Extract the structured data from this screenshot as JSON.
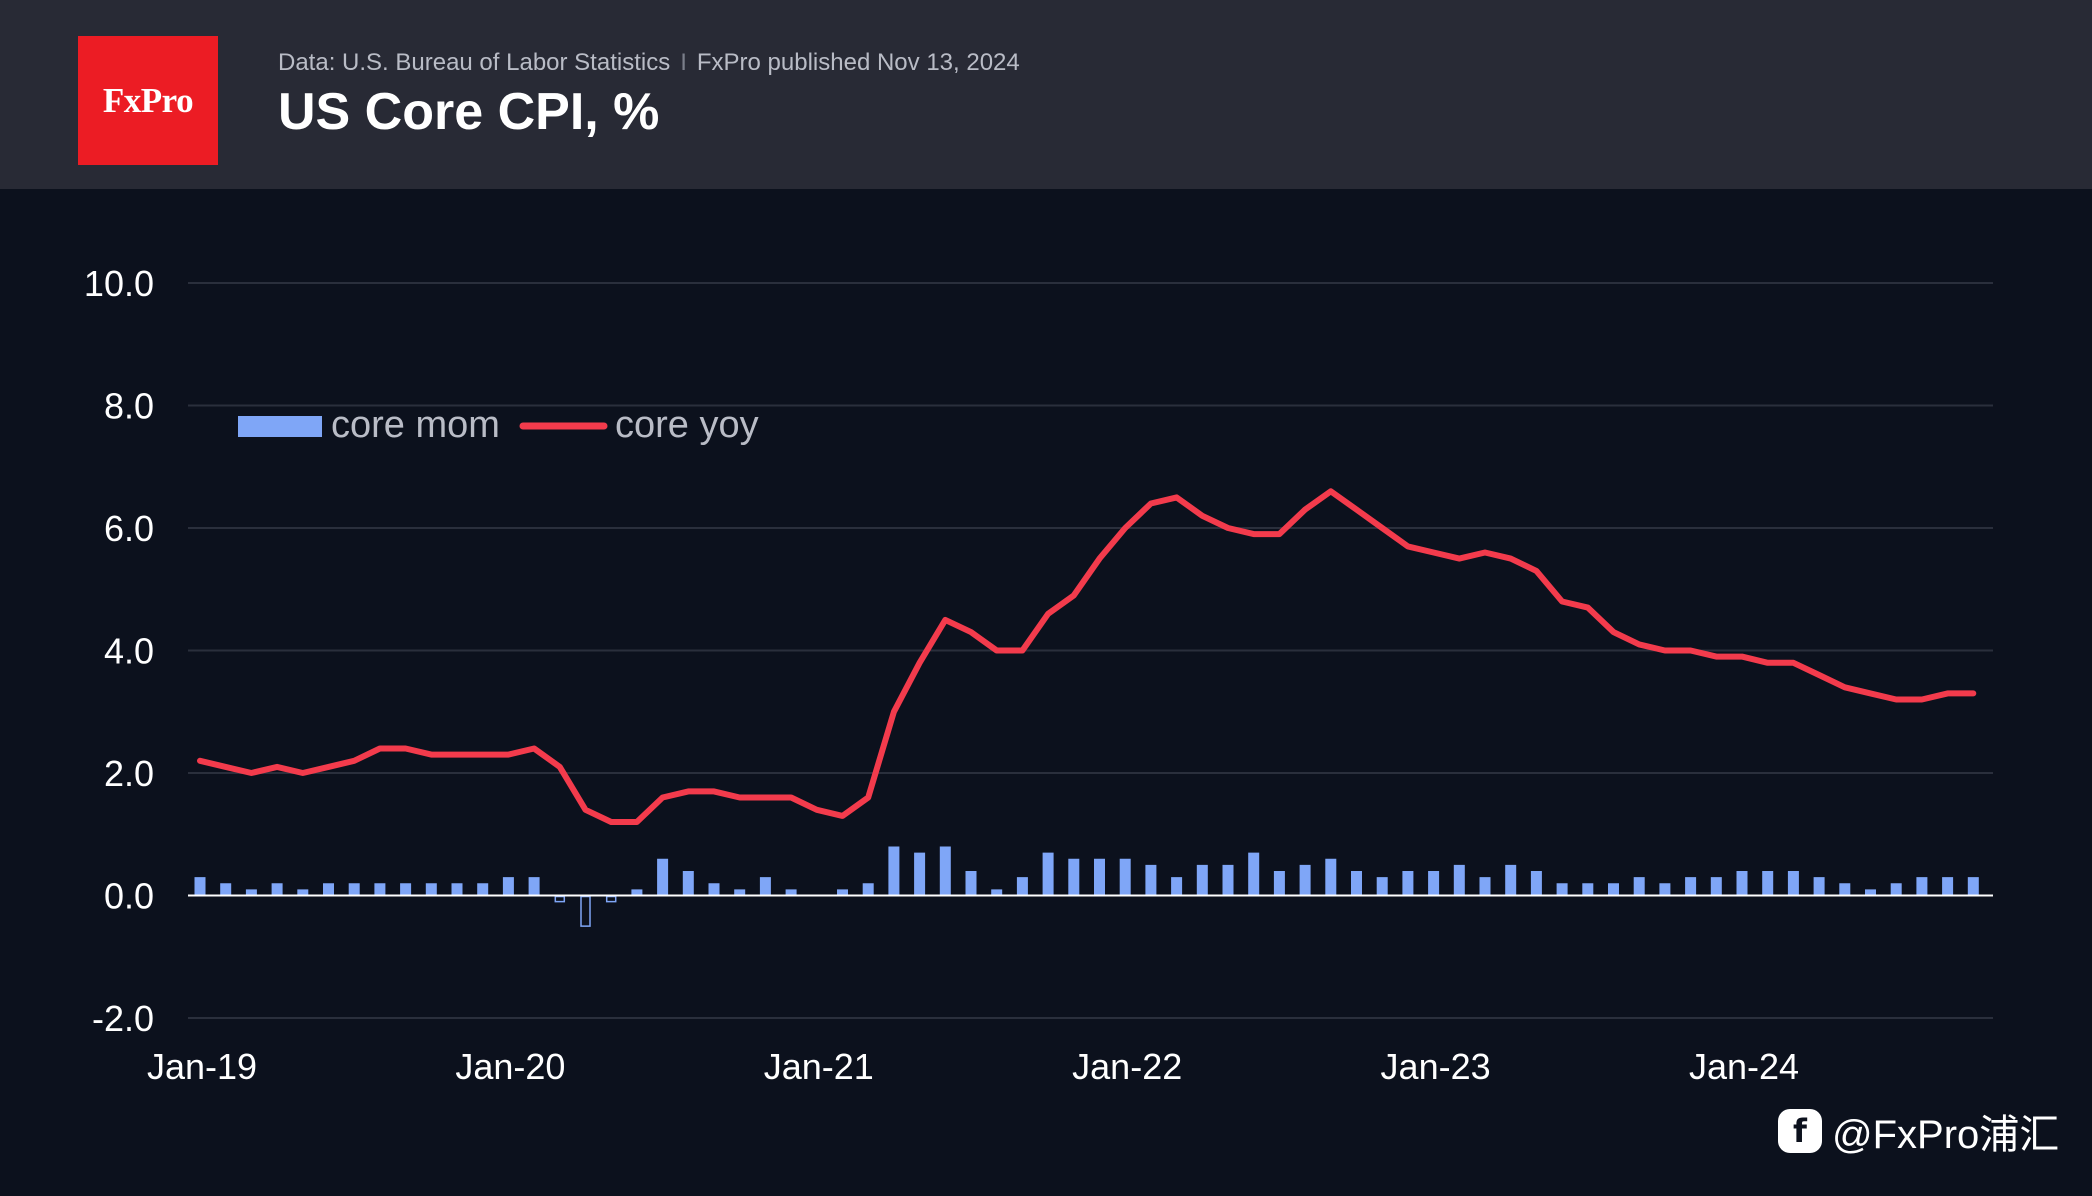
{
  "header": {
    "logo_text": "FxPro",
    "source": "Data: U.S. Bureau of Labor Statistics",
    "separator": "I",
    "published": "FxPro published Nov 13, 2024",
    "title": "US Core CPI, %"
  },
  "watermark": {
    "text": "@FxPro浦汇",
    "icon": "weibo-icon"
  },
  "colors": {
    "background": "#0c111d",
    "header_bg": "#282a35",
    "logo_bg": "#ec1c24",
    "bar": "#7fa6f7",
    "line": "#f33b4c",
    "grid": "#2a2f3c",
    "zero_line": "#ffffff"
  },
  "chart_data": {
    "type": "bar+line",
    "title": "US Core CPI, %",
    "ylim": [
      -2,
      10
    ],
    "yticks": [
      "10.0",
      "8.0",
      "6.0",
      "4.0",
      "2.0",
      "0.0",
      "-2.0"
    ],
    "ytick_values": [
      10,
      8,
      6,
      4,
      2,
      0,
      -2
    ],
    "xtick_labels": [
      "Jan-19",
      "Jan-20",
      "Jan-21",
      "Jan-22",
      "Jan-23",
      "Jan-24"
    ],
    "x_start": "Jan-19",
    "x_end": "Oct-24",
    "grid": true,
    "legend_position": "top-left",
    "series": [
      {
        "name": "core mom",
        "kind": "bar",
        "values": [
          0.3,
          0.2,
          0.1,
          0.2,
          0.1,
          0.2,
          0.2,
          0.2,
          0.2,
          0.2,
          0.2,
          0.2,
          0.3,
          0.3,
          -0.1,
          -0.5,
          -0.1,
          0.1,
          0.6,
          0.4,
          0.2,
          0.1,
          0.3,
          0.1,
          0.0,
          0.1,
          0.2,
          0.8,
          0.7,
          0.8,
          0.4,
          0.1,
          0.3,
          0.7,
          0.6,
          0.6,
          0.6,
          0.5,
          0.3,
          0.5,
          0.5,
          0.7,
          0.4,
          0.5,
          0.6,
          0.4,
          0.3,
          0.4,
          0.4,
          0.5,
          0.3,
          0.5,
          0.4,
          0.2,
          0.2,
          0.2,
          0.3,
          0.2,
          0.3,
          0.3,
          0.4,
          0.4,
          0.4,
          0.3,
          0.2,
          0.1,
          0.2,
          0.3,
          0.3,
          0.3
        ]
      },
      {
        "name": "core yoy",
        "kind": "line",
        "values": [
          2.2,
          2.1,
          2.0,
          2.1,
          2.0,
          2.1,
          2.2,
          2.4,
          2.4,
          2.3,
          2.3,
          2.3,
          2.3,
          2.4,
          2.1,
          1.4,
          1.2,
          1.2,
          1.6,
          1.7,
          1.7,
          1.6,
          1.6,
          1.6,
          1.4,
          1.3,
          1.6,
          3.0,
          3.8,
          4.5,
          4.3,
          4.0,
          4.0,
          4.6,
          4.9,
          5.5,
          6.0,
          6.4,
          6.5,
          6.2,
          6.0,
          5.9,
          5.9,
          6.3,
          6.6,
          6.3,
          6.0,
          5.7,
          5.6,
          5.5,
          5.6,
          5.5,
          5.3,
          4.8,
          4.7,
          4.3,
          4.1,
          4.0,
          4.0,
          3.9,
          3.9,
          3.8,
          3.8,
          3.6,
          3.4,
          3.3,
          3.2,
          3.2,
          3.3,
          3.3
        ]
      }
    ]
  }
}
